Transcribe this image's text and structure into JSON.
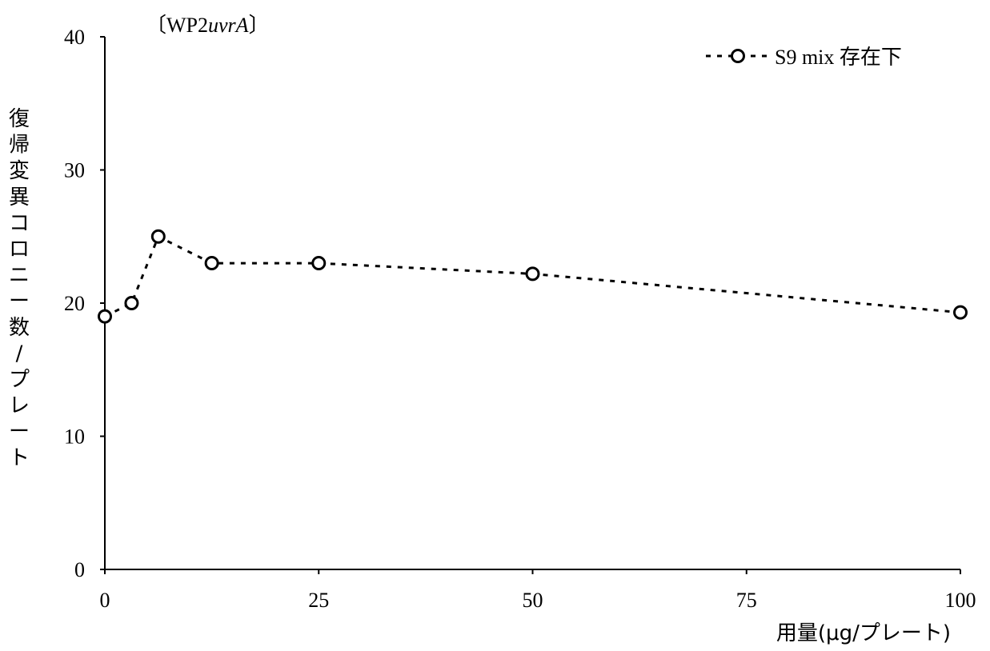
{
  "chart_data": {
    "type": "line",
    "title_prefix": "〔WP2",
    "title_italic": "uvrA",
    "title_suffix": "〕",
    "xlabel": "用量(μg/プレート)",
    "ylabel_chars": [
      "復",
      "帰",
      "変",
      "異",
      "コ",
      "ロ",
      "ニ",
      "ー",
      "数",
      "/",
      "プ",
      "レ",
      "ー",
      "ト"
    ],
    "xlim": [
      0,
      100
    ],
    "ylim": [
      0,
      40
    ],
    "xticks": [
      0,
      25,
      50,
      75,
      100
    ],
    "yticks": [
      0,
      10,
      20,
      30,
      40
    ],
    "legend_position": "top-right",
    "series": [
      {
        "name": "S9 mix 存在下",
        "line_style": "dotted",
        "marker": "open-circle",
        "color": "#000000",
        "x": [
          0,
          3.13,
          6.25,
          12.5,
          25,
          50,
          100
        ],
        "y": [
          19,
          20,
          25,
          23,
          23,
          22.2,
          19.3
        ]
      }
    ]
  }
}
